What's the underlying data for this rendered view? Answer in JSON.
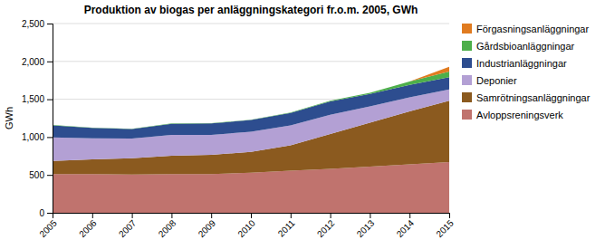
{
  "chart_data": {
    "type": "area",
    "stacked": true,
    "title": "Produktion av biogas per anläggningskategori fr.o.m. 2005, GWh",
    "ylabel": "GWh",
    "x": [
      2005,
      2006,
      2007,
      2008,
      2009,
      2010,
      2011,
      2012,
      2013,
      2014,
      2015
    ],
    "xlim": [
      2005,
      2015
    ],
    "xticks": [
      2005,
      2006,
      2007,
      2008,
      2009,
      2010,
      2011,
      2012,
      2013,
      2014,
      2015
    ],
    "ylim": [
      0,
      2500
    ],
    "yticks": [
      0,
      500,
      {
        "value": 1000,
        "label": "1,000"
      },
      {
        "value": 1500,
        "label": "1,500"
      },
      {
        "value": 2000,
        "label": "2,000"
      },
      {
        "value": 2500,
        "label": "2,500"
      }
    ],
    "grid": true,
    "legend": "right",
    "series": [
      {
        "name": "Avloppsreningsverk",
        "color": "#c0736e",
        "values": [
          510,
          510,
          505,
          510,
          510,
          530,
          555,
          580,
          610,
          640,
          670
        ]
      },
      {
        "name": "Samrötningsanläggningar",
        "color": "#8b5a1f",
        "values": [
          175,
          195,
          215,
          245,
          255,
          275,
          335,
          460,
          580,
          700,
          810
        ]
      },
      {
        "name": "Deponier",
        "color": "#b3a0d4",
        "values": [
          310,
          280,
          260,
          275,
          265,
          265,
          265,
          255,
          215,
          185,
          150
        ]
      },
      {
        "name": "Industrianläggningar",
        "color": "#2d4d8f",
        "values": [
          160,
          135,
          125,
          145,
          150,
          155,
          165,
          175,
          165,
          165,
          160
        ]
      },
      {
        "name": "Gårdsbioanläggningar",
        "color": "#4daf4a",
        "values": [
          5,
          5,
          5,
          5,
          5,
          5,
          5,
          10,
          15,
          45,
          75
        ]
      },
      {
        "name": "Förgasningsanläggningar",
        "color": "#e07b20",
        "values": [
          0,
          0,
          0,
          0,
          0,
          0,
          0,
          0,
          0,
          0,
          65
        ]
      }
    ]
  }
}
